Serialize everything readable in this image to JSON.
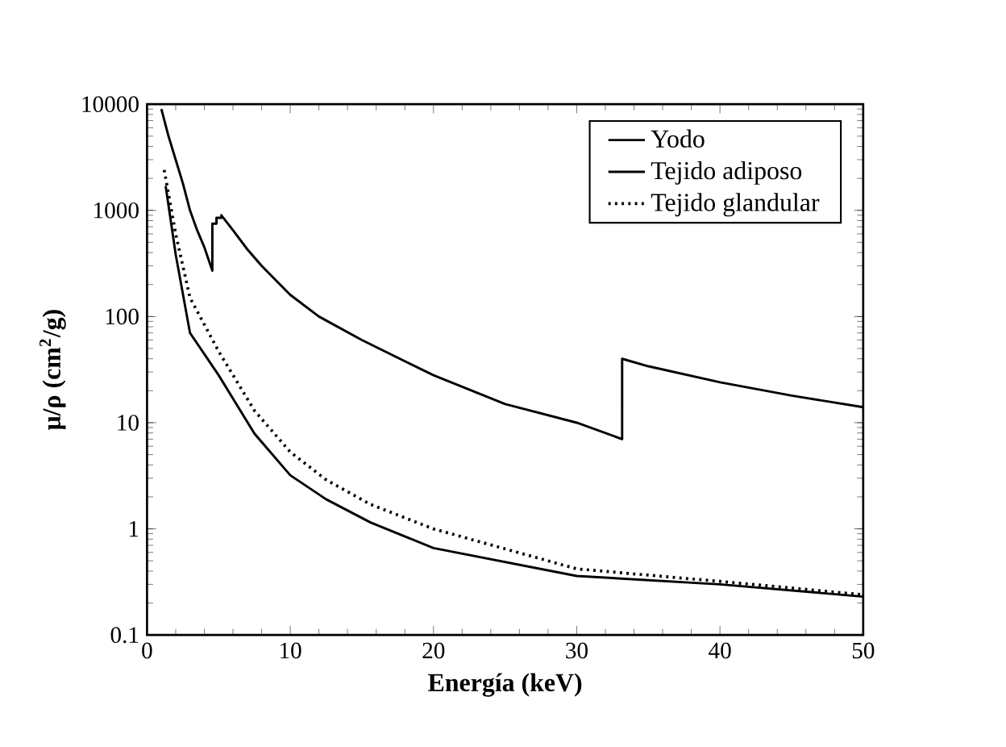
{
  "chart_data": {
    "type": "line",
    "xlabel": "Energía (keV)",
    "ylabel": "μ/ρ (cm$^{2}$/g)",
    "log": "y",
    "xlim": [
      0,
      50
    ],
    "ylim": [
      0.1,
      10000
    ],
    "xticks": [
      0,
      10,
      20,
      30,
      40,
      50
    ],
    "yticks": [
      0.1,
      1,
      10,
      100,
      1000,
      10000
    ],
    "legend": "top right",
    "marker": "none",
    "grid": false,
    "series": [
      {
        "name": "Yodo",
        "color": "#000000",
        "line_style": "solid",
        "x": [
          1,
          1.5,
          2,
          2.5,
          3,
          3.5,
          4,
          4.56,
          4.56,
          4.85,
          4.85,
          5.19,
          5.19,
          6,
          7,
          8,
          10,
          12,
          15,
          20,
          25,
          30,
          33.17,
          33.17,
          35,
          40,
          45,
          50
        ],
        "values": [
          9000,
          5000,
          3000,
          1800,
          1000,
          650,
          450,
          270,
          750,
          750,
          850,
          850,
          900,
          650,
          430,
          300,
          160,
          100,
          60,
          28,
          15,
          10,
          7,
          40,
          34,
          24,
          18,
          14
        ]
      },
      {
        "name": "Tejido adiposo",
        "color": "#000000",
        "line_style": "solid",
        "x": [
          1.3,
          2,
          3,
          5,
          7.5,
          10,
          12.5,
          15.6,
          20,
          30,
          40,
          50
        ],
        "values": [
          1700,
          385,
          70,
          28,
          7.9,
          3.2,
          1.9,
          1.15,
          0.66,
          0.36,
          0.3,
          0.23
        ]
      },
      {
        "name": "Tejido glandular",
        "color": "#000000",
        "line_style": "dotted",
        "x": [
          1.2,
          2,
          3,
          5,
          7.5,
          10,
          12.5,
          15.6,
          20,
          30,
          40,
          50
        ],
        "values": [
          2400,
          600,
          150,
          47,
          13,
          5.3,
          2.9,
          1.7,
          1.0,
          0.42,
          0.32,
          0.24
        ]
      }
    ]
  }
}
